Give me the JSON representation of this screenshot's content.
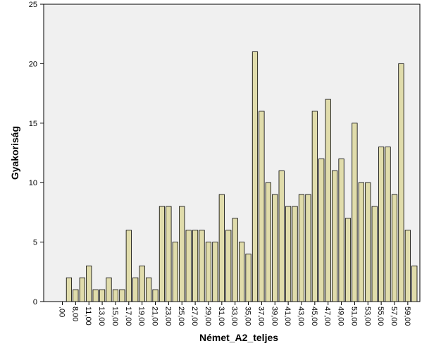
{
  "chart_data": {
    "type": "bar",
    "xlabel": "Német_A2_teljes",
    "ylabel": "Gyakoriság",
    "ylim": [
      0,
      25
    ],
    "yticks": [
      0,
      5,
      10,
      15,
      20,
      25
    ],
    "grid": false,
    "bar_color": "#e0dcab",
    "plot_background": "#f0f0f0",
    "xtick_labels": [
      ".00",
      "8,00",
      "11,00",
      "13,00",
      "15,00",
      "17,00",
      "19,00",
      "21,00",
      "23,00",
      "25,00",
      "27,00",
      "29,00",
      "31,00",
      "33,00",
      "35,00",
      "37,00",
      "39,00",
      "41,00",
      "43,00",
      "45,00",
      "47,00",
      "49,00",
      "51,00",
      "53,00",
      "55,00",
      "57,00",
      "59,00"
    ],
    "categories": [
      ".00",
      "7,00",
      "8,00",
      "10,00",
      "11,00",
      "12,00",
      "13,00",
      "14,00",
      "15,00",
      "16,00",
      "17,00",
      "18,00",
      "19,00",
      "20,00",
      "21,00",
      "22,00",
      "23,00",
      "24,00",
      "25,00",
      "26,00",
      "27,00",
      "28,00",
      "29,00",
      "30,00",
      "31,00",
      "32,00",
      "33,00",
      "34,00",
      "35,00",
      "36,00",
      "37,00",
      "38,00",
      "39,00",
      "40,00",
      "41,00",
      "42,00",
      "43,00",
      "44,00",
      "45,00",
      "46,00",
      "47,00",
      "48,00",
      "49,00",
      "50,00",
      "51,00",
      "52,00",
      "53,00",
      "54,00",
      "55,00",
      "56,00",
      "57,00",
      "58,00",
      "59,00",
      "60,00"
    ],
    "values": [
      0,
      2,
      1,
      2,
      3,
      1,
      1,
      2,
      1,
      1,
      6,
      2,
      3,
      2,
      1,
      8,
      8,
      5,
      8,
      6,
      6,
      6,
      5,
      5,
      9,
      6,
      7,
      5,
      4,
      21,
      16,
      10,
      9,
      11,
      8,
      8,
      9,
      9,
      16,
      12,
      17,
      11,
      12,
      7,
      15,
      10,
      10,
      8,
      13,
      13,
      9,
      20,
      6,
      3
    ]
  }
}
